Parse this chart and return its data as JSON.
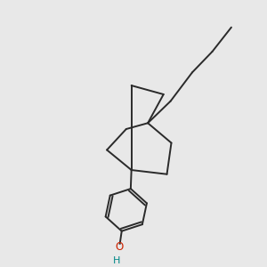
{
  "background_color": "#e8e8e8",
  "line_color": "#2a2a2a",
  "o_color": "#cc2200",
  "h_color": "#008888",
  "line_width": 1.4,
  "figsize": [
    3.0,
    3.0
  ],
  "dpi": 100
}
